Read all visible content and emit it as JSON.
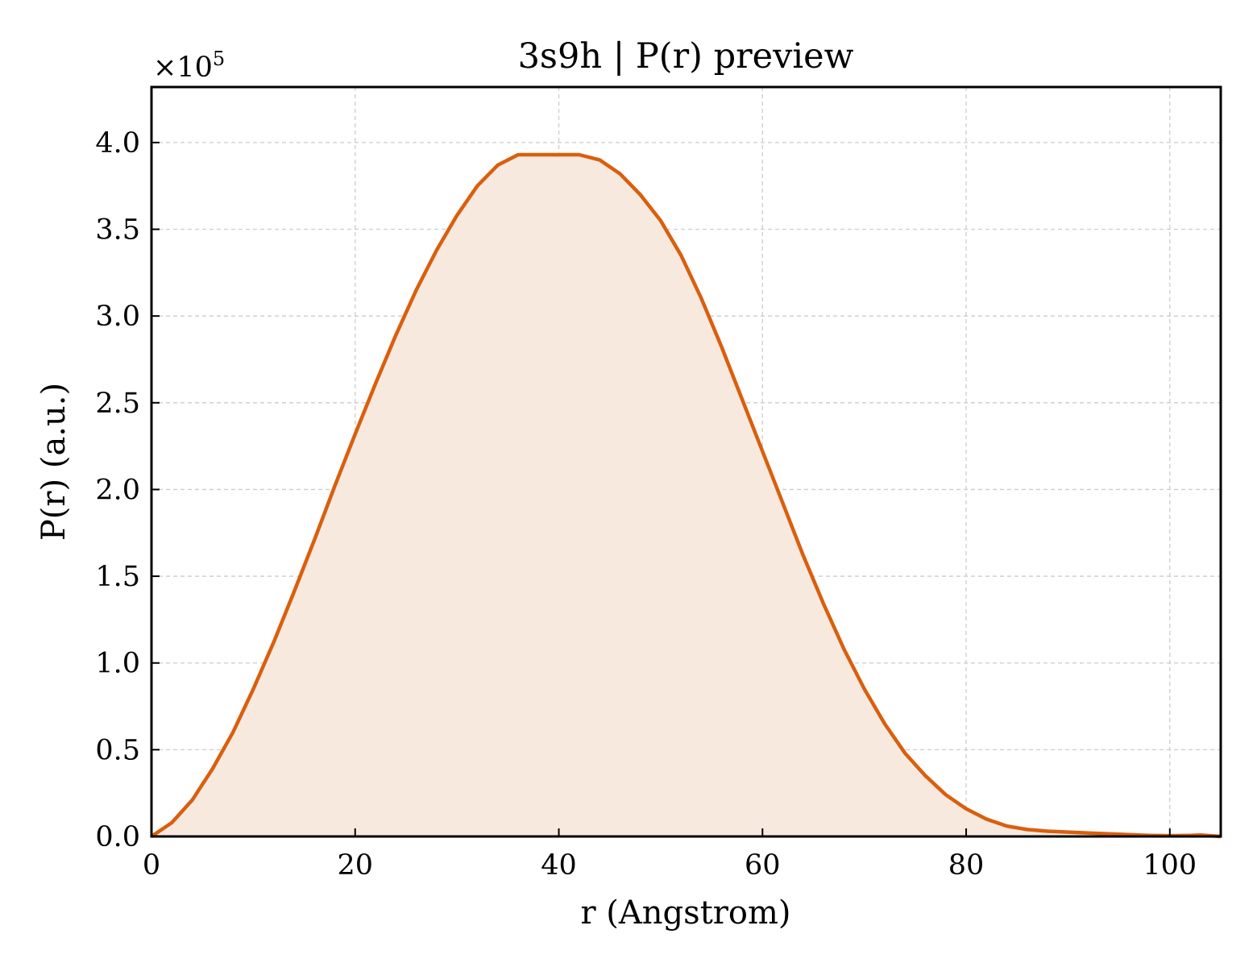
{
  "colors": {
    "line": "#d95f0e",
    "fill": "#f8e9df",
    "grid": "#cccccc",
    "axes": "#000000",
    "background": "#ffffff"
  },
  "chart_data": {
    "type": "area",
    "title": "3s9h | P(r) preview",
    "xlabel": "r (Angstrom)",
    "ylabel": "P(r) (a.u.)",
    "y_scale_label": "×10",
    "y_scale_exponent": "5",
    "y_multiplier": 100000,
    "xlim": [
      0,
      105
    ],
    "ylim": [
      0,
      4.32
    ],
    "x_ticks": [
      0,
      20,
      40,
      60,
      80,
      100
    ],
    "x_tick_labels": [
      "0",
      "20",
      "40",
      "60",
      "80",
      "100"
    ],
    "y_ticks": [
      0,
      0.5,
      1.0,
      1.5,
      2.0,
      2.5,
      3.0,
      3.5,
      4.0
    ],
    "y_tick_labels": [
      "0.0",
      "0.5",
      "1.0",
      "1.5",
      "2.0",
      "2.5",
      "3.0",
      "3.5",
      "4.0"
    ],
    "grid": true,
    "legend": "none",
    "series": [
      {
        "x": [
          0,
          2,
          4,
          6,
          8,
          10,
          12,
          14,
          16,
          18,
          20,
          22,
          24,
          26,
          28,
          30,
          32,
          34,
          36,
          38,
          40,
          42,
          44,
          46,
          48,
          50,
          52,
          54,
          56,
          58,
          60,
          62,
          64,
          66,
          68,
          70,
          72,
          74,
          76,
          78,
          80,
          82,
          84,
          86,
          88,
          90,
          92,
          94,
          96,
          98,
          100,
          102,
          103,
          105
        ],
        "y": [
          0.0,
          0.08,
          0.21,
          0.39,
          0.6,
          0.85,
          1.12,
          1.41,
          1.71,
          2.02,
          2.32,
          2.61,
          2.89,
          3.15,
          3.38,
          3.58,
          3.75,
          3.87,
          3.93,
          3.93,
          3.93,
          3.93,
          3.9,
          3.82,
          3.7,
          3.55,
          3.35,
          3.1,
          2.82,
          2.52,
          2.22,
          1.92,
          1.62,
          1.34,
          1.08,
          0.85,
          0.65,
          0.48,
          0.35,
          0.24,
          0.16,
          0.1,
          0.06,
          0.04,
          0.03,
          0.025,
          0.02,
          0.015,
          0.01,
          0.006,
          0.004,
          0.006,
          0.008,
          0.0
        ]
      }
    ]
  }
}
